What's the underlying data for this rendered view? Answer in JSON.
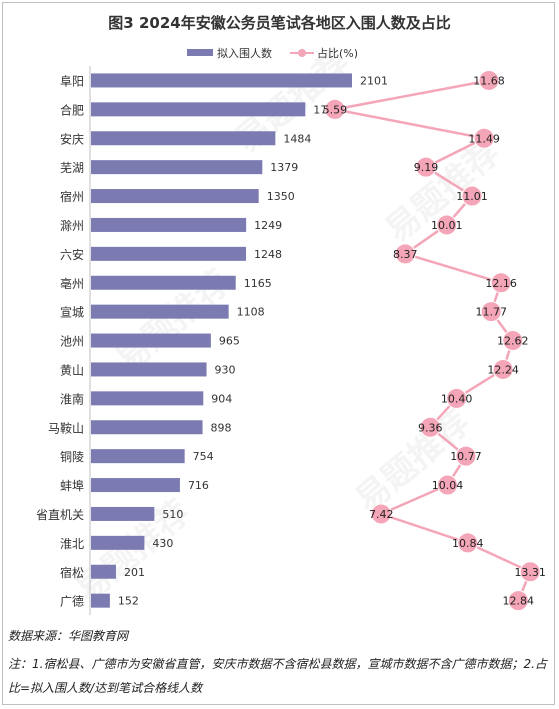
{
  "chart_data": {
    "type": "bar+line",
    "title": "图3 2024年安徽公务员笔试各地区入围人数及占比",
    "legend": [
      "拟入围人数",
      "占比(%)"
    ],
    "legend_position": "top",
    "categories": [
      "阜阳",
      "合肥",
      "安庆",
      "芜湖",
      "宿州",
      "滁州",
      "六安",
      "亳州",
      "宣城",
      "池州",
      "黄山",
      "淮南",
      "马鞍山",
      "铜陵",
      "蚌埠",
      "省直机关",
      "淮北",
      "宿松",
      "广德"
    ],
    "series": [
      {
        "name": "拟入围人数",
        "type": "bar",
        "color": "#7b7bb2",
        "values": [
          2101,
          1725,
          1484,
          1379,
          1350,
          1249,
          1248,
          1165,
          1108,
          965,
          930,
          904,
          898,
          754,
          716,
          510,
          430,
          201,
          152
        ]
      },
      {
        "name": "占比(%)",
        "type": "line",
        "color": "#f4a6b8",
        "values": [
          "11.68",
          "5.59",
          "11.49",
          "9.19",
          "11.01",
          "10.01",
          "8.37",
          "12.16",
          "11.77",
          "12.62",
          "12.24",
          "10.40",
          "9.36",
          "10.77",
          "10.04",
          "7.42",
          "10.84",
          "13.31",
          "12.84"
        ]
      }
    ],
    "orientation": "horizontal",
    "grid": false,
    "watermark": "易题推荐"
  },
  "source": "数据来源：华图教育网",
  "notes": "注：1.宿松县、广德市为安徽省直管，安庆市数据不含宿松县数据，宣城市数据不含广德市数据；2.占比=拟入围人数/达到笔试合格线人数"
}
